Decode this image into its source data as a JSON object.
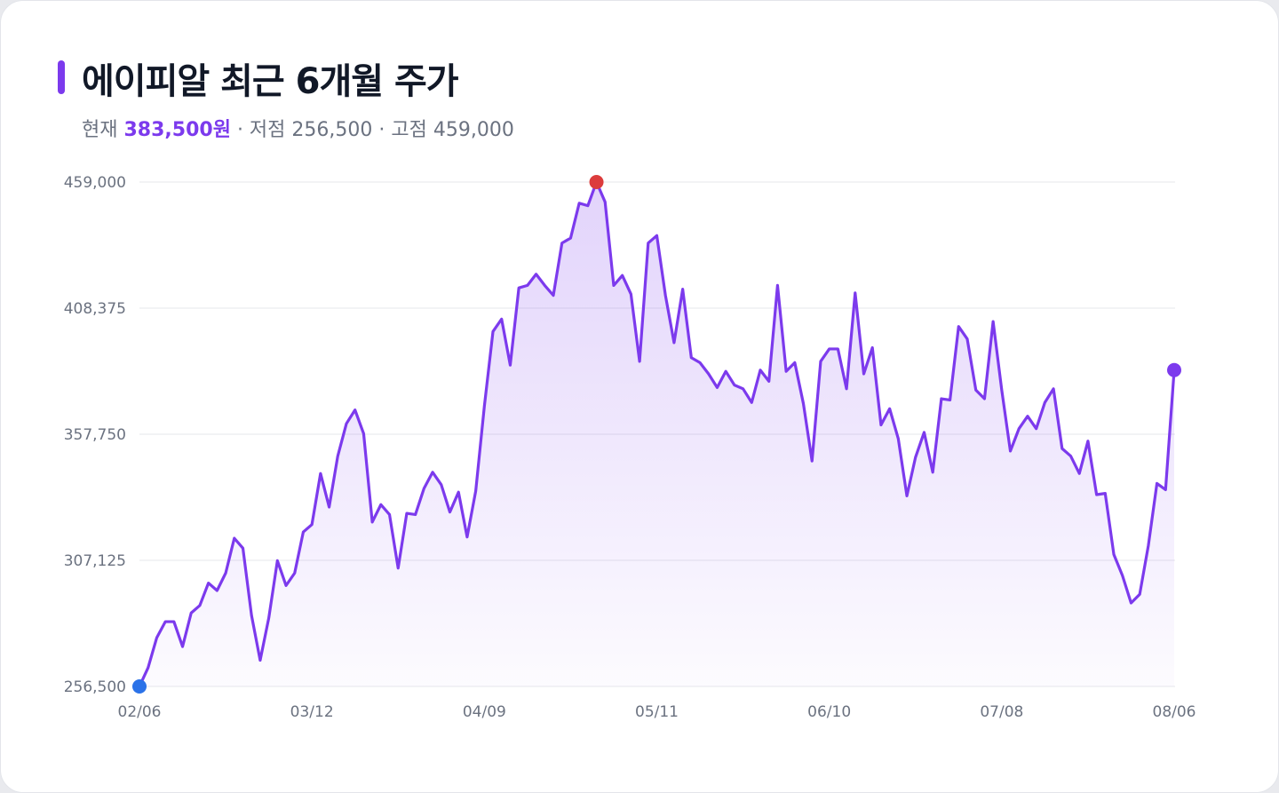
{
  "header": {
    "title": "에이피알 최근 6개월 주가",
    "current_label": "현재",
    "current_value": "383,500원",
    "low_label": "· 저점 256,500",
    "high_label": "· 고점 459,000"
  },
  "colors": {
    "accent": "#7c3aed",
    "line": "#7c3aed",
    "grid": "#e5e7eb",
    "low_marker": "#2b72e8",
    "high_marker": "#dc3c3c",
    "current_marker": "#7c3aed"
  },
  "chart_data": {
    "type": "area",
    "title": "에이피알 최근 6개월 주가",
    "xlabel": "",
    "ylabel": "",
    "ylim": [
      256500,
      459000
    ],
    "yticks": [
      256500,
      307125,
      357750,
      408375,
      459000
    ],
    "ytick_labels": [
      "256,500",
      "307,125",
      "357,750",
      "408,375",
      "459,000"
    ],
    "xtick_labels": [
      "02/06",
      "03/12",
      "04/09",
      "05/11",
      "06/10",
      "07/08",
      "08/06"
    ],
    "xtick_index": [
      0,
      20,
      40,
      60,
      80,
      100,
      120
    ],
    "grid": true,
    "legend": "none",
    "markers": {
      "low": {
        "index": 0,
        "value": 256500
      },
      "high": {
        "index": 53,
        "value": 459000
      },
      "current": {
        "index": 120,
        "value": 383500
      }
    },
    "series": [
      {
        "values": [
          256500,
          264000,
          276000,
          282500,
          282500,
          272500,
          286000,
          289000,
          298000,
          295000,
          302000,
          316000,
          312000,
          285000,
          267000,
          284000,
          307000,
          297000,
          302000,
          318500,
          321500,
          342000,
          328500,
          349000,
          362000,
          367500,
          358000,
          322500,
          329500,
          325500,
          304000,
          326000,
          325500,
          336000,
          342500,
          337500,
          326500,
          334500,
          316500,
          335000,
          369000,
          399000,
          404000,
          385500,
          416500,
          417500,
          422000,
          417500,
          413500,
          434500,
          436500,
          450500,
          449500,
          459000,
          451000,
          417500,
          421500,
          414000,
          387000,
          434500,
          437500,
          413500,
          394500,
          416000,
          388500,
          386500,
          382000,
          376500,
          383000,
          377500,
          376000,
          370500,
          383500,
          379000,
          417500,
          383000,
          386500,
          370000,
          347000,
          387000,
          392000,
          392000,
          376000,
          414500,
          382000,
          392500,
          361500,
          368000,
          356000,
          333000,
          348500,
          358500,
          342500,
          372000,
          371500,
          401000,
          396000,
          375500,
          372000,
          403000,
          375500,
          351000,
          360000,
          365000,
          360000,
          370500,
          376000,
          352000,
          349000,
          342000,
          355000,
          333500,
          334000,
          309500,
          301000,
          290000,
          293500,
          313000,
          338000,
          335500,
          383500
        ]
      }
    ]
  }
}
